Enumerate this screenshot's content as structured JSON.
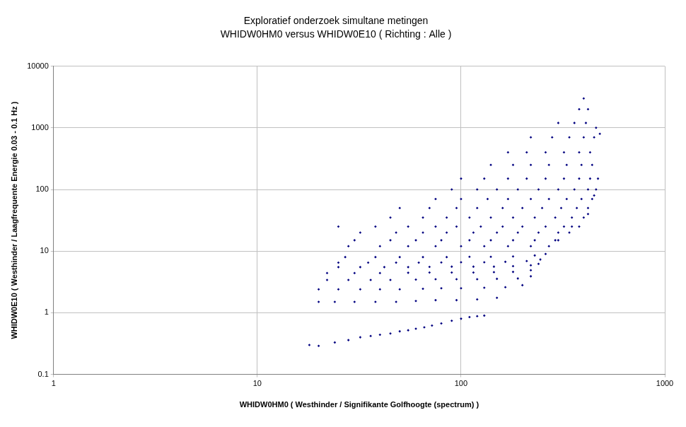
{
  "chart_data": {
    "type": "scatter",
    "title": "Exploratief onderzoek simultane metingen",
    "subtitle": "WHIDW0HM0 versus WHIDW0E10 ( Richting : Alle )",
    "x_label": "WHIDW0HM0 ( Westhinder / Signifikante Golfhoogte (spectrum) )",
    "y_label": "WHIDW0E10 ( Westhinder / Laagfrequente Energie 0.03 - 0.1 Hz )",
    "color": "#000080",
    "marker": "diamond",
    "log": true,
    "grid": true,
    "xlim": [
      1,
      1000
    ],
    "xticks": [
      1,
      10,
      100,
      1000
    ],
    "ylim": [
      0.1,
      10000
    ],
    "yticks": [
      0.1,
      1,
      10,
      100,
      1000,
      10000
    ],
    "x": [
      18,
      20,
      24,
      28,
      32,
      36,
      40,
      45,
      50,
      55,
      60,
      66,
      72,
      80,
      90,
      100,
      110,
      120,
      130,
      20,
      24,
      30,
      38,
      48,
      60,
      75,
      95,
      120,
      150,
      20,
      25,
      32,
      40,
      50,
      65,
      80,
      100,
      130,
      165,
      200,
      22,
      28,
      36,
      45,
      60,
      75,
      95,
      120,
      150,
      190,
      220,
      22,
      30,
      40,
      55,
      70,
      90,
      115,
      145,
      180,
      220,
      25,
      32,
      42,
      55,
      70,
      90,
      115,
      145,
      180,
      220,
      240,
      25,
      35,
      48,
      62,
      80,
      100,
      130,
      165,
      210,
      245,
      27,
      38,
      50,
      65,
      85,
      110,
      140,
      180,
      230,
      260,
      28,
      40,
      55,
      75,
      100,
      130,
      170,
      220,
      270,
      30,
      45,
      60,
      80,
      110,
      140,
      180,
      230,
      290,
      32,
      48,
      65,
      85,
      115,
      150,
      190,
      240,
      300,
      340,
      25,
      38,
      55,
      75,
      95,
      125,
      160,
      200,
      260,
      320,
      380,
      45,
      65,
      85,
      110,
      140,
      180,
      230,
      290,
      350,
      400,
      50,
      70,
      95,
      120,
      160,
      200,
      250,
      310,
      370,
      420,
      75,
      100,
      135,
      170,
      220,
      270,
      330,
      390,
      440,
      90,
      120,
      150,
      190,
      240,
      300,
      360,
      420,
      460,
      100,
      130,
      170,
      210,
      260,
      320,
      380,
      430,
      140,
      180,
      220,
      270,
      330,
      390,
      440,
      170,
      210,
      260,
      320,
      380,
      430,
      220,
      280,
      340,
      400,
      450,
      300,
      360,
      410,
      380,
      420,
      400,
      300,
      350,
      420,
      450,
      470,
      480,
      460
    ],
    "values": [
      0.3,
      0.29,
      0.33,
      0.36,
      0.4,
      0.42,
      0.44,
      0.46,
      0.5,
      0.52,
      0.55,
      0.58,
      0.62,
      0.67,
      0.74,
      0.8,
      0.85,
      0.88,
      0.9,
      1.5,
      1.5,
      1.5,
      1.5,
      1.5,
      1.55,
      1.6,
      1.6,
      1.65,
      1.75,
      2.4,
      2.4,
      2.4,
      2.4,
      2.4,
      2.45,
      2.5,
      2.5,
      2.55,
      2.6,
      2.8,
      3.4,
      3.4,
      3.4,
      3.4,
      3.45,
      3.5,
      3.5,
      3.5,
      3.55,
      3.6,
      3.9,
      4.4,
      4.4,
      4.4,
      4.45,
      4.5,
      4.5,
      4.5,
      4.55,
      4.6,
      4.9,
      5.5,
      5.5,
      5.5,
      5.5,
      5.55,
      5.6,
      5.6,
      5.6,
      5.7,
      5.9,
      6.2,
      6.5,
      6.5,
      6.5,
      6.5,
      6.55,
      6.6,
      6.6,
      6.7,
      6.9,
      7.3,
      8,
      8,
      8,
      8,
      8,
      8.1,
      8.1,
      8.2,
      8.5,
      9,
      12,
      12,
      12,
      12,
      12,
      12,
      12,
      12,
      12,
      15,
      15,
      15,
      15,
      15,
      15,
      15,
      15,
      15,
      20,
      20,
      20,
      20,
      20,
      20,
      20,
      20,
      20,
      20,
      25,
      25,
      25,
      25,
      25,
      25,
      25,
      25,
      25,
      25,
      25,
      35,
      35,
      35,
      35,
      35,
      35,
      35,
      35,
      35,
      35,
      50,
      50,
      50,
      50,
      50,
      50,
      50,
      50,
      50,
      50,
      70,
      70,
      70,
      70,
      70,
      70,
      70,
      70,
      70,
      100,
      100,
      100,
      100,
      100,
      100,
      100,
      100,
      100,
      150,
      150,
      150,
      150,
      150,
      150,
      150,
      150,
      250,
      250,
      250,
      250,
      250,
      250,
      250,
      400,
      400,
      400,
      400,
      400,
      400,
      700,
      700,
      700,
      700,
      700,
      1200,
      1200,
      1200,
      2000,
      2000,
      3000,
      15,
      25,
      40,
      80,
      150,
      800,
      1000
    ]
  }
}
